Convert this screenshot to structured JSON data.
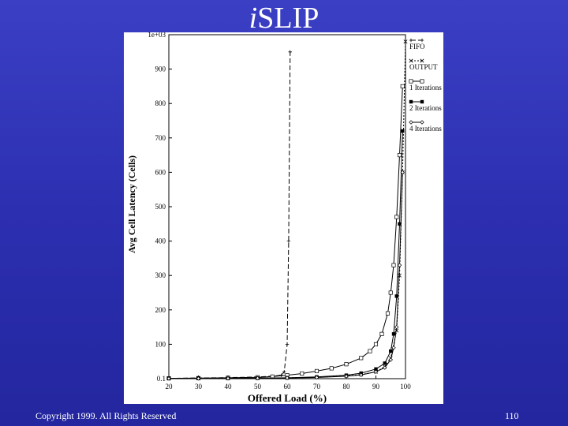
{
  "slide": {
    "title_italic": "i",
    "title_rest": "SLIP",
    "copyright": "Copyright 1999. All Rights Reserved",
    "page_number": "110"
  },
  "colors": {
    "background": "#2c2fb0",
    "text": "#ffffff",
    "plot_background": "#ffffff",
    "plot_ink": "#000000"
  },
  "chart_data": {
    "type": "line",
    "title": "",
    "xlabel": "Offered Load (%)",
    "ylabel": "Avg Cell Latency (Cells)",
    "xlim": [
      20,
      100
    ],
    "ylim": [
      0,
      1000
    ],
    "x_ticks": [
      "20",
      "30",
      "40",
      "50",
      "60",
      "70",
      "80",
      "90",
      "100"
    ],
    "y_ticks": [
      "0.1",
      "100",
      "200",
      "300",
      "400",
      "500",
      "600",
      "700",
      "800",
      "900",
      "1e+03"
    ],
    "grid": false,
    "legend_position": "right",
    "series": [
      {
        "name": "FIFO",
        "dash": "6,3",
        "marker": "plus",
        "points": [
          [
            20,
            1
          ],
          [
            30,
            2
          ],
          [
            40,
            3
          ],
          [
            50,
            5
          ],
          [
            55,
            7
          ],
          [
            58,
            10
          ],
          [
            59,
            20
          ],
          [
            60,
            100
          ],
          [
            60.5,
            400
          ],
          [
            61,
            950
          ]
        ]
      },
      {
        "name": "OUTPUT",
        "dash": "2,2",
        "marker": "x",
        "points": [
          [
            20,
            0.6
          ],
          [
            30,
            0.7
          ],
          [
            40,
            1
          ],
          [
            50,
            1.5
          ],
          [
            60,
            2.5
          ],
          [
            70,
            4
          ],
          [
            80,
            8
          ],
          [
            85,
            12
          ],
          [
            90,
            20
          ],
          [
            93,
            35
          ],
          [
            95,
            60
          ],
          [
            97,
            140
          ],
          [
            98,
            300
          ],
          [
            99,
            600
          ],
          [
            100,
            980
          ]
        ]
      },
      {
        "name": "1 Iterations",
        "dash": "",
        "marker": "square",
        "points": [
          [
            20,
            1
          ],
          [
            30,
            1.5
          ],
          [
            40,
            2.5
          ],
          [
            50,
            4
          ],
          [
            55,
            6
          ],
          [
            60,
            10
          ],
          [
            65,
            15
          ],
          [
            70,
            22
          ],
          [
            75,
            30
          ],
          [
            80,
            42
          ],
          [
            85,
            60
          ],
          [
            88,
            80
          ],
          [
            90,
            100
          ],
          [
            92,
            130
          ],
          [
            94,
            190
          ],
          [
            95,
            250
          ],
          [
            96,
            330
          ],
          [
            97,
            470
          ],
          [
            98,
            650
          ],
          [
            99,
            850
          ]
        ]
      },
      {
        "name": "2 Iterations",
        "dash": "",
        "marker": "filled-square",
        "points": [
          [
            20,
            0.5
          ],
          [
            30,
            0.7
          ],
          [
            40,
            1
          ],
          [
            50,
            1.5
          ],
          [
            60,
            2.5
          ],
          [
            70,
            5
          ],
          [
            80,
            10
          ],
          [
            85,
            16
          ],
          [
            90,
            28
          ],
          [
            93,
            45
          ],
          [
            95,
            80
          ],
          [
            96,
            130
          ],
          [
            97,
            240
          ],
          [
            98,
            450
          ],
          [
            99,
            720
          ]
        ]
      },
      {
        "name": "4 Iterations",
        "dash": "",
        "marker": "diamond",
        "points": [
          [
            20,
            0.4
          ],
          [
            30,
            0.5
          ],
          [
            40,
            0.8
          ],
          [
            50,
            1.2
          ],
          [
            60,
            2
          ],
          [
            70,
            3.5
          ],
          [
            80,
            7
          ],
          [
            85,
            11
          ],
          [
            90,
            20
          ],
          [
            93,
            32
          ],
          [
            95,
            55
          ],
          [
            96,
            90
          ],
          [
            97,
            150
          ],
          [
            98,
            330
          ],
          [
            99,
            600
          ]
        ]
      }
    ]
  }
}
